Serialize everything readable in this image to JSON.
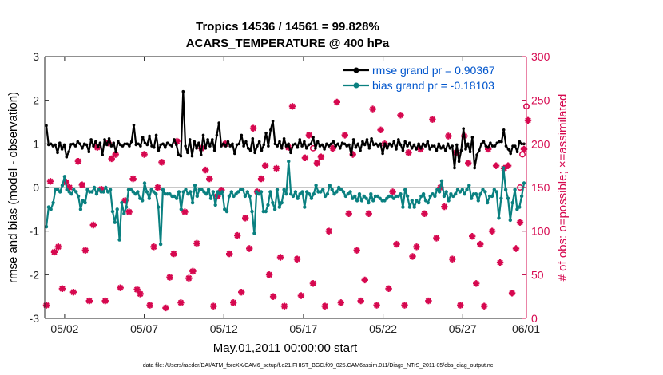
{
  "chart_data": {
    "type": "line",
    "title": "Tropics 14536 / 14561 = 99.828%",
    "subtitle": "ACARS_TEMPERATURE @ 400 hPa",
    "xlabel": "May.01,2011 00:00:00 start",
    "ylabel_left": "rmse and bias (model - observation)",
    "ylabel_right": "# of obs: o=possible; ×=assimilated",
    "footnote": "data file: /Users/raeder/DAI/ATM_forcXX/CAM6_setup/f.e21.FHIST_BGC.f09_025.CAM6assim.011/Diags_NTrS_2011-05/obs_diag_output.nc",
    "xlim": [
      0.75,
      31.0
    ],
    "ylim_left": [
      -3,
      3
    ],
    "ylim_right": [
      0,
      300
    ],
    "x_ticks": [
      {
        "value": 2,
        "label": "05/02"
      },
      {
        "value": 7,
        "label": "05/07"
      },
      {
        "value": 12,
        "label": "05/12"
      },
      {
        "value": 17,
        "label": "05/17"
      },
      {
        "value": 22,
        "label": "05/22"
      },
      {
        "value": 27,
        "label": "05/27"
      },
      {
        "value": 32,
        "label": "06/01"
      }
    ],
    "y_ticks_left": [
      "-3",
      "-2",
      "-1",
      "0",
      "1",
      "2",
      "3"
    ],
    "y_ticks_right": [
      "0",
      "50",
      "100",
      "150",
      "200",
      "250",
      "300"
    ],
    "colors": {
      "rmse": "#000000",
      "bias": "#0a8080",
      "obs": "#d6084f",
      "zero_line": "#c8c8c8",
      "legend_text": "#0055cc",
      "right_axis": "#d6084f"
    },
    "legend": [
      {
        "label": "rmse grand pr = 0.90367",
        "series": "rmse"
      },
      {
        "label": "bias grand pr = -0.18103",
        "series": "bias"
      }
    ],
    "series": [
      {
        "name": "rmse",
        "axis": "left",
        "marker": "star",
        "values": [
          1.42,
          0.98,
          1.0,
          0.95,
          0.98,
          0.8,
          1.02,
          0.88,
          0.98,
          0.7,
          0.82,
          0.99,
          1.0,
          0.95,
          1.05,
          1.0,
          0.9,
          1.0,
          0.98,
          0.82,
          1.1,
          0.95,
          1.05,
          0.93,
          1.02,
          0.75,
          1.1,
          0.98,
          1.12,
          0.95,
          1.02,
          0.82,
          1.06,
          0.98,
          0.95,
          1.0,
          1.0,
          0.95,
          1.05,
          1.43,
          0.98,
          1.0,
          0.95,
          1.15,
          1.02,
          0.98,
          1.18,
          0.95,
          0.92,
          1.2,
          0.85,
          0.98,
          1.0,
          0.92,
          1.02,
          0.98,
          0.95,
          1.1,
          0.98,
          0.75,
          0.72,
          2.2,
          0.95,
          0.8,
          1.1,
          0.72,
          1.05,
          0.9,
          1.02,
          0.75,
          1.2,
          0.9,
          1.1,
          0.95,
          1.1,
          0.85,
          1.2,
          1.48,
          0.95,
          1.0,
          0.95,
          1.05,
          0.95,
          1.0,
          0.78,
          0.98,
          1.0,
          1.2,
          0.95,
          1.05,
          0.9,
          0.85,
          1.12,
          0.8,
          0.95,
          1.05,
          0.85,
          0.98,
          1.25,
          0.95,
          1.32,
          1.52,
          1.0,
          0.95,
          1.05,
          0.9,
          1.12,
          0.95,
          1.0,
          0.8,
          0.98,
          1.0,
          0.92,
          1.1,
          0.95,
          1.05,
          0.9,
          0.98,
          1.0,
          1.15,
          0.9,
          1.05,
          0.95,
          0.98,
          0.88,
          1.0,
          0.95,
          1.0,
          1.05,
          0.95,
          1.0,
          0.9,
          1.02,
          1.0,
          0.95,
          0.98,
          0.75,
          1.1,
          0.92,
          1.0,
          0.85,
          1.05,
          0.98,
          1.1,
          0.9,
          1.12,
          0.98,
          1.0,
          0.95,
          1.0,
          0.78,
          1.0,
          0.9,
          1.0,
          0.95,
          1.05,
          0.88,
          1.1,
          0.98,
          0.85,
          1.05,
          0.95,
          1.02,
          0.9,
          0.98,
          0.88,
          1.0,
          0.9,
          1.0,
          0.95,
          1.05,
          0.88,
          0.95,
          0.95,
          0.85,
          1.0,
          0.9,
          0.95,
          0.85,
          1.0,
          0.9,
          0.95,
          0.45,
          0.98,
          0.6,
          0.85,
          1.35,
          0.88,
          1.0,
          0.82,
          1.15,
          0.45,
          0.75,
          0.85,
          1.0,
          1.05,
          0.95,
          0.92,
          1.02,
          0.95,
          0.95,
          1.02,
          1.05,
          1.05,
          1.32,
          0.95,
          0.88,
          0.78,
          0.95,
          0.95,
          0.82,
          1.05,
          1.0,
          1.0
        ]
      },
      {
        "name": "bias",
        "axis": "left",
        "marker": "dot",
        "values": [
          -0.9,
          -0.45,
          -0.5,
          -0.35,
          -0.05,
          -0.05,
          -0.1,
          0.05,
          0.25,
          -0.05,
          -0.1,
          -0.15,
          -0.05,
          -0.1,
          -0.2,
          -0.5,
          -0.3,
          -0.35,
          -0.05,
          -0.1,
          -0.1,
          0.0,
          -0.15,
          -0.05,
          -0.1,
          -0.1,
          0.0,
          -0.1,
          -0.05,
          -0.55,
          -0.8,
          -0.5,
          -1.2,
          -0.35,
          -0.6,
          -0.45,
          -0.05,
          -0.05,
          -0.1,
          -0.15,
          -0.1,
          -0.25,
          -0.3,
          0.1,
          -0.1,
          -0.25,
          -0.05,
          -0.1,
          -0.15,
          -0.45,
          -1.3,
          -0.05,
          -0.15,
          -0.15,
          -0.15,
          -0.2,
          -0.2,
          -0.25,
          -0.1,
          -0.5,
          -0.1,
          -0.05,
          -0.15,
          -0.1,
          -0.35,
          0.05,
          -0.2,
          -0.05,
          -0.05,
          -0.1,
          -0.15,
          -0.05,
          -0.25,
          -0.1,
          -0.4,
          -0.1,
          -0.15,
          -0.1,
          -0.5,
          -0.55,
          -0.2,
          -0.1,
          -0.2,
          -0.15,
          -0.1,
          -0.05,
          -0.05,
          -0.2,
          -0.1,
          -0.2,
          -0.55,
          -1.05,
          -0.1,
          -0.15,
          -0.1,
          -0.55,
          -0.55,
          -0.4,
          -0.1,
          -0.35,
          -0.5,
          -0.05,
          -0.45,
          -0.35,
          -0.05,
          -0.15,
          0.6,
          -0.15,
          -0.2,
          -0.1,
          -0.25,
          -0.15,
          -0.1,
          -0.45,
          -0.1,
          -0.15,
          -0.25,
          -0.15,
          0.05,
          -0.1,
          -0.1,
          -0.05,
          -0.2,
          -0.15,
          0.05,
          -0.05,
          -0.15,
          -0.1,
          0.0,
          -0.05,
          -0.1,
          -0.2,
          -0.15,
          -0.1,
          -0.25,
          -0.2,
          -0.3,
          -0.15,
          -0.3,
          -0.2,
          -0.25,
          -0.35,
          -0.15,
          -0.3,
          -0.2,
          -0.2,
          -0.25,
          -0.3,
          -0.3,
          -0.25,
          -0.2,
          -0.2,
          -0.25,
          -0.2,
          -0.2,
          -0.15,
          -0.45,
          -0.05,
          -0.2,
          -0.45,
          -0.3,
          -0.45,
          -0.3,
          -0.35,
          -0.2,
          -0.15,
          -0.3,
          -0.35,
          -0.2,
          -0.15,
          -0.2,
          -0.05,
          -0.1,
          0.15,
          -0.2,
          -0.1,
          -0.3,
          -0.15,
          -0.2,
          -0.15,
          -0.05,
          -0.1,
          -0.05,
          -0.15,
          -0.05,
          0.05,
          -0.25,
          -0.15,
          -0.15,
          -0.3,
          -0.15,
          -0.05,
          -0.1,
          -0.35,
          -0.2,
          -0.2,
          -0.05,
          -0.1,
          -0.7,
          -0.25,
          0.45,
          -0.05,
          -0.25,
          -0.75,
          -0.35,
          -0.05,
          -0.5,
          -0.45,
          -0.2,
          0.1
        ]
      },
      {
        "name": "obs_possible",
        "axis": "right",
        "marker": "circle",
        "points": [
          [
            17.6,
            195
          ],
          [
            30.75,
            188
          ],
          [
            31.0,
            243
          ],
          [
            30.6,
            150
          ]
        ]
      },
      {
        "name": "obs_assimilated",
        "axis": "right",
        "marker": "x",
        "points": [
          [
            0.85,
            15
          ],
          [
            1.1,
            157
          ],
          [
            1.35,
            76
          ],
          [
            1.6,
            82
          ],
          [
            1.85,
            34
          ],
          [
            2.1,
            156
          ],
          [
            2.3,
            150
          ],
          [
            2.55,
            30
          ],
          [
            2.85,
            180
          ],
          [
            3.1,
            153
          ],
          [
            3.3,
            78
          ],
          [
            3.55,
            20
          ],
          [
            3.8,
            107
          ],
          [
            4.05,
            196
          ],
          [
            4.3,
            148
          ],
          [
            4.55,
            20
          ],
          [
            4.75,
            201
          ],
          [
            4.95,
            183
          ],
          [
            5.2,
            188
          ],
          [
            5.5,
            35
          ],
          [
            5.8,
            135
          ],
          [
            6.05,
            122
          ],
          [
            6.3,
            160
          ],
          [
            6.55,
            33
          ],
          [
            6.75,
            28
          ],
          [
            7.0,
            188
          ],
          [
            7.35,
            15
          ],
          [
            7.6,
            82
          ],
          [
            7.85,
            150
          ],
          [
            8.1,
            179
          ],
          [
            8.35,
            12
          ],
          [
            8.6,
            47
          ],
          [
            8.85,
            74
          ],
          [
            9.05,
            203
          ],
          [
            9.3,
            18
          ],
          [
            9.55,
            122
          ],
          [
            9.8,
            46
          ],
          [
            10.05,
            54
          ],
          [
            10.3,
            86
          ],
          [
            10.6,
            195
          ],
          [
            10.85,
            170
          ],
          [
            11.1,
            160
          ],
          [
            11.35,
            14
          ],
          [
            11.6,
            140
          ],
          [
            11.85,
            147
          ],
          [
            12.1,
            200
          ],
          [
            12.35,
            74
          ],
          [
            12.6,
            18
          ],
          [
            12.85,
            95
          ],
          [
            13.1,
            30
          ],
          [
            13.35,
            115
          ],
          [
            13.6,
            80
          ],
          [
            13.85,
            218
          ],
          [
            14.1,
            145
          ],
          [
            14.35,
            160
          ],
          [
            14.6,
            175
          ],
          [
            14.85,
            50
          ],
          [
            15.1,
            25
          ],
          [
            15.3,
            172
          ],
          [
            15.55,
            70
          ],
          [
            15.8,
            14
          ],
          [
            16.05,
            196
          ],
          [
            16.3,
            243
          ],
          [
            16.6,
            68
          ],
          [
            16.85,
            26
          ],
          [
            17.1,
            184
          ],
          [
            17.35,
            210
          ],
          [
            17.6,
            40
          ],
          [
            17.85,
            178
          ],
          [
            18.1,
            185
          ],
          [
            18.35,
            14
          ],
          [
            18.6,
            100
          ],
          [
            18.85,
            195
          ],
          [
            19.1,
            248
          ],
          [
            19.35,
            18
          ],
          [
            19.6,
            210
          ],
          [
            19.85,
            120
          ],
          [
            20.1,
            188
          ],
          [
            20.35,
            78
          ],
          [
            20.6,
            20
          ],
          [
            20.85,
            44
          ],
          [
            21.1,
            120
          ],
          [
            21.35,
            240
          ],
          [
            21.6,
            15
          ],
          [
            21.85,
            216
          ],
          [
            22.1,
            200
          ],
          [
            22.35,
            34
          ],
          [
            22.6,
            145
          ],
          [
            22.85,
            85
          ],
          [
            23.1,
            233
          ],
          [
            23.35,
            15
          ],
          [
            23.6,
            190
          ],
          [
            23.85,
            71
          ],
          [
            24.1,
            82
          ],
          [
            24.35,
            194
          ],
          [
            24.6,
            120
          ],
          [
            24.85,
            20
          ],
          [
            25.1,
            228
          ],
          [
            25.35,
            92
          ],
          [
            25.6,
            150
          ],
          [
            25.85,
            128
          ],
          [
            26.1,
            209
          ],
          [
            26.35,
            68
          ],
          [
            26.6,
            190
          ],
          [
            26.85,
            15
          ],
          [
            27.1,
            209
          ],
          [
            27.35,
            178
          ],
          [
            27.6,
            94
          ],
          [
            27.85,
            40
          ],
          [
            28.1,
            85
          ],
          [
            28.35,
            14
          ],
          [
            28.6,
            194
          ],
          [
            28.85,
            100
          ],
          [
            29.1,
            175
          ],
          [
            29.35,
            64
          ],
          [
            29.6,
            172
          ],
          [
            29.85,
            175
          ],
          [
            30.1,
            29
          ],
          [
            30.35,
            80
          ],
          [
            30.6,
            110
          ],
          [
            30.85,
            194
          ],
          [
            31.1,
            227
          ]
        ]
      }
    ]
  }
}
